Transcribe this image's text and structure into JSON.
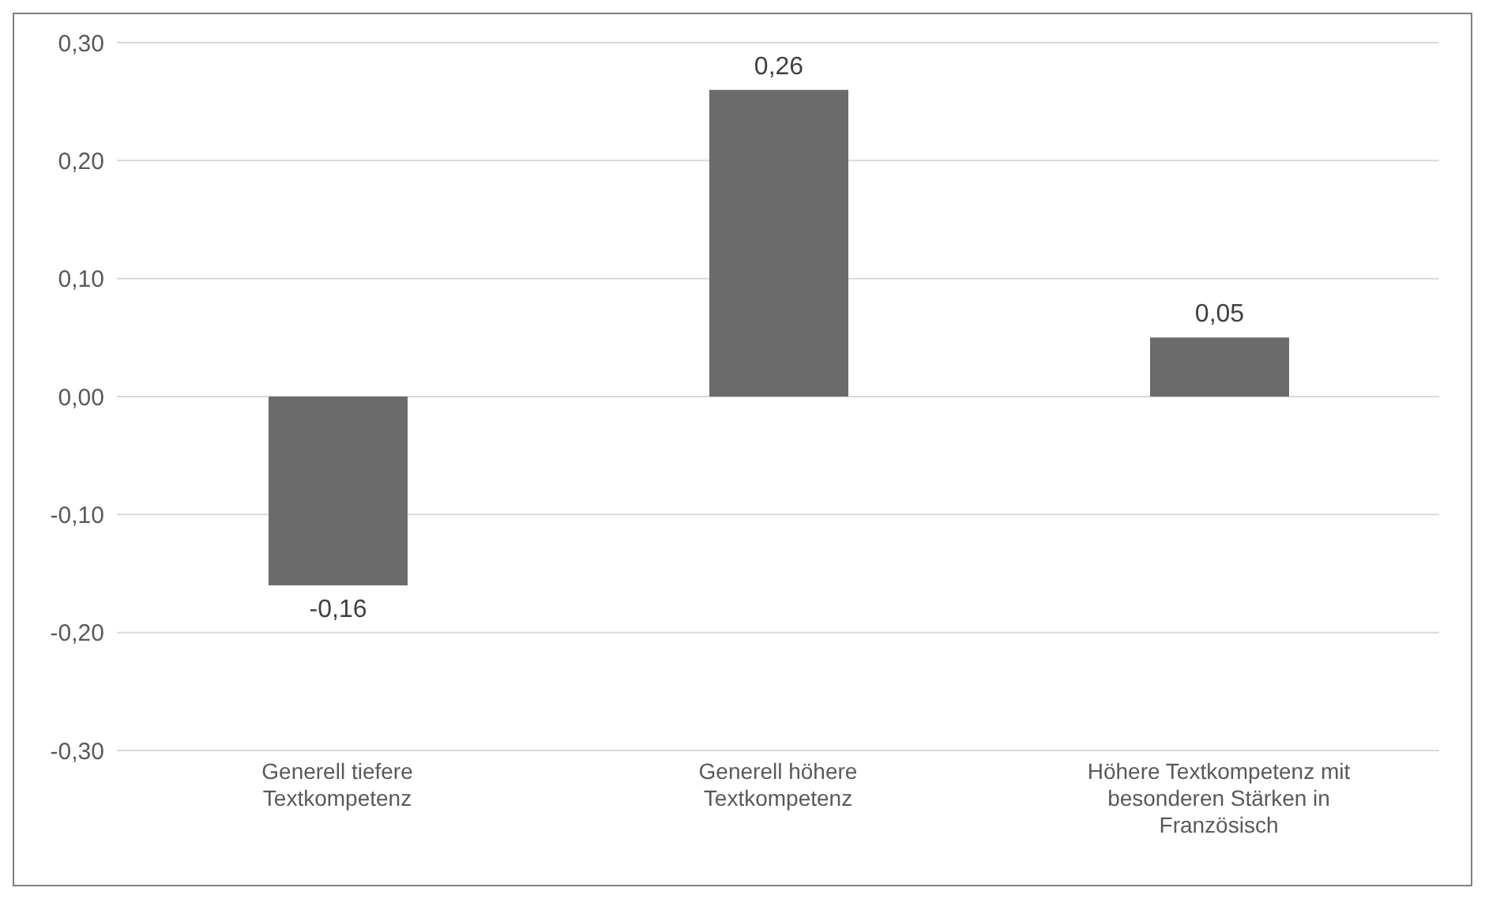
{
  "chart_data": {
    "type": "bar",
    "categories": [
      "Generell tiefere Textkompetenz",
      "Generell höhere Textkompetenz",
      "Höhere Textkompetenz mit besonderen Stärken in Französisch"
    ],
    "values": [
      -0.16,
      0.26,
      0.05
    ],
    "color": "#6b6b6b",
    "ylim": [
      -0.3,
      0.3
    ],
    "yticks": [
      {
        "value": -0.3,
        "label": "-0,30"
      },
      {
        "value": -0.2,
        "label": "-0,20"
      },
      {
        "value": -0.1,
        "label": "-0,10"
      },
      {
        "value": 0,
        "label": "0,00"
      },
      {
        "value": 0.1,
        "label": "0,10"
      },
      {
        "value": 0.2,
        "label": "0,20"
      },
      {
        "value": 0.3,
        "label": "0,30"
      }
    ],
    "grid": "y",
    "value_labels": [
      "-0,16",
      "0,26",
      "0,05"
    ]
  }
}
